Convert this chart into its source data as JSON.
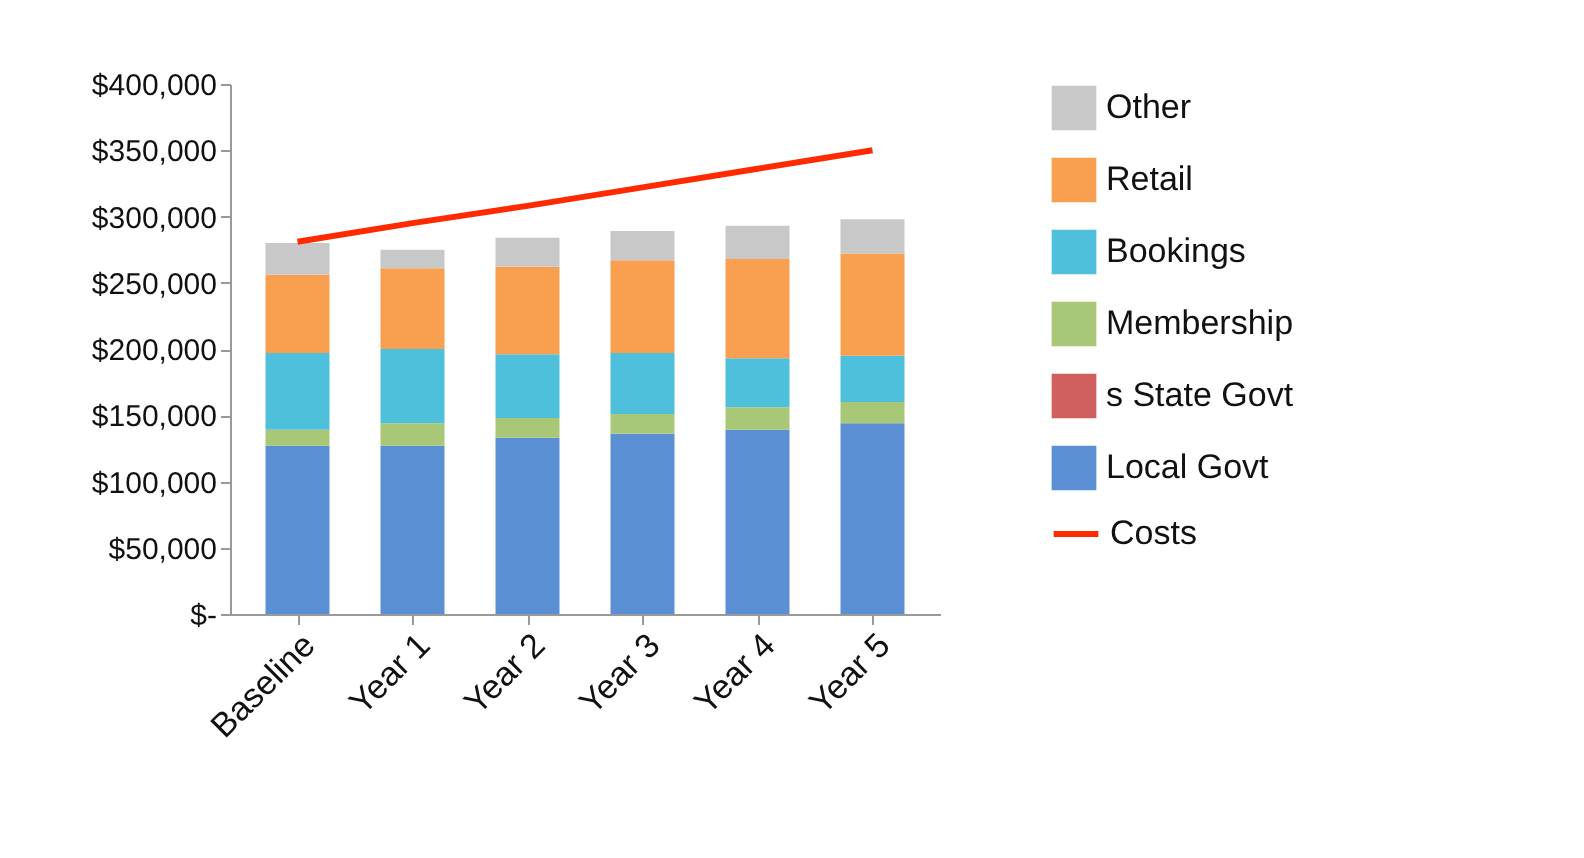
{
  "chart_data": {
    "type": "bar",
    "stacked": true,
    "categories": [
      "Baseline",
      "Year 1",
      "Year 2",
      "Year 3",
      "Year 4",
      "Year 5"
    ],
    "series": [
      {
        "name": "Local Govt",
        "color": "#5b8fd4",
        "values": [
          127000,
          127000,
          133000,
          136000,
          139000,
          144000
        ]
      },
      {
        "name": "s State Govt",
        "color": "#d06060",
        "values": [
          0,
          0,
          0,
          0,
          0,
          0
        ]
      },
      {
        "name": "Membership",
        "color": "#a8c878",
        "values": [
          12000,
          17000,
          15000,
          15000,
          17000,
          16000
        ]
      },
      {
        "name": "Bookings",
        "color": "#4ec0dc",
        "values": [
          58000,
          56000,
          48000,
          46000,
          37000,
          35000
        ]
      },
      {
        "name": "Retail",
        "color": "#f8a050",
        "values": [
          59000,
          61000,
          66000,
          70000,
          75000,
          77000
        ]
      },
      {
        "name": "Other",
        "color": "#c8c8c8",
        "values": [
          24000,
          14000,
          22000,
          22000,
          25000,
          26000
        ]
      },
      {
        "name": "Costs",
        "type": "line",
        "color": "#ff2a00",
        "values": [
          281000,
          295000,
          308000,
          322000,
          336000,
          350000
        ]
      }
    ],
    "ylim": [
      0,
      400000
    ],
    "yticks": [
      {
        "value": 0,
        "label": "$-"
      },
      {
        "value": 50000,
        "label": "$50,000"
      },
      {
        "value": 100000,
        "label": "$100,000"
      },
      {
        "value": 150000,
        "label": "$150,000"
      },
      {
        "value": 200000,
        "label": "$200,000"
      },
      {
        "value": 250000,
        "label": "$250,000"
      },
      {
        "value": 300000,
        "label": "$300,000"
      },
      {
        "value": 350000,
        "label": "$350,000"
      },
      {
        "value": 400000,
        "label": "$400,000"
      }
    ],
    "grid": false,
    "legend": "right"
  }
}
